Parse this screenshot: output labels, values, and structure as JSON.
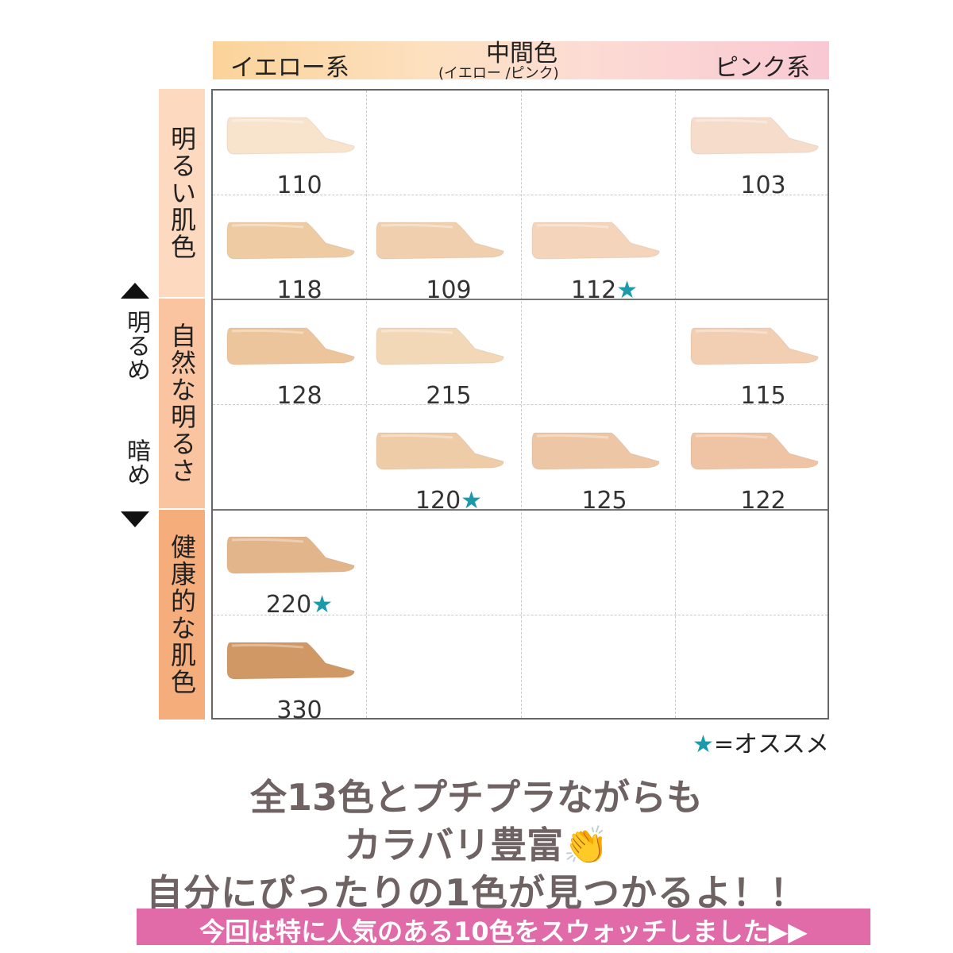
{
  "header": {
    "yellow": "イエロー系",
    "middle": "中間色",
    "middle_sub": "(イエロー /ピンク)",
    "pink": "ピンク系"
  },
  "categories": {
    "bright": "明るい肌色",
    "natural": "自然な明るさ",
    "healthy": "健康的な肌色"
  },
  "axis": {
    "bright": "明るめ",
    "dark": "暗め"
  },
  "swatches": [
    {
      "label": "110",
      "star": "",
      "color": "#f8e4cc"
    },
    {
      "label": "103",
      "star": "",
      "color": "#f6dccb"
    },
    {
      "label": "118",
      "star": "",
      "color": "#eecba3"
    },
    {
      "label": "109",
      "star": "",
      "color": "#f0cfae"
    },
    {
      "label": "112",
      "star": "★",
      "color": "#f4d5bb"
    },
    {
      "label": "128",
      "star": "",
      "color": "#edc59c"
    },
    {
      "label": "215",
      "star": "",
      "color": "#f3d8b8"
    },
    {
      "label": "115",
      "star": "",
      "color": "#f2cfb2"
    },
    {
      "label": "120",
      "star": "★",
      "color": "#eecca8"
    },
    {
      "label": "125",
      "star": "",
      "color": "#edc6a6"
    },
    {
      "label": "122",
      "star": "",
      "color": "#eec4a4"
    },
    {
      "label": "220",
      "star": "★",
      "color": "#e2b58a"
    },
    {
      "label": "330",
      "star": "",
      "color": "#cf9865"
    }
  ],
  "legend": {
    "star": "★",
    "text": "=オススメ"
  },
  "captions": {
    "line1": "全13色とプチプラながらも",
    "line2": "カラバリ豊富👏",
    "line3": "自分にぴったりの1色が見つかるよ！！"
  },
  "banner": "今回は特に人気のある10色をスウォッチしました▶▶"
}
